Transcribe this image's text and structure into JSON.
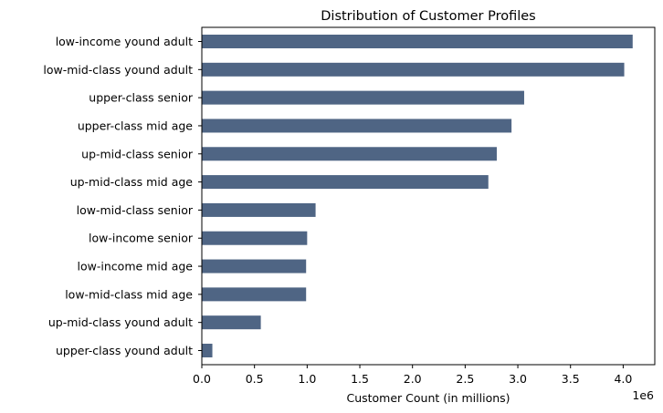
{
  "chart_data": {
    "type": "bar",
    "orientation": "horizontal",
    "title": "Distribution of Customer Profiles",
    "xlabel": "Customer Count (in millions)",
    "ylabel": "",
    "x_scale_label": "1e6",
    "xlim": [
      0,
      4300000
    ],
    "x_ticks": [
      0,
      500000,
      1000000,
      1500000,
      2000000,
      2500000,
      3000000,
      3500000,
      4000000
    ],
    "x_tick_labels": [
      "0.0",
      "0.5",
      "1.0",
      "1.5",
      "2.0",
      "2.5",
      "3.0",
      "3.5",
      "4.0"
    ],
    "categories": [
      "low-income yound adult",
      "low-mid-class yound adult",
      "upper-class senior",
      "upper-class mid age",
      "up-mid-class senior",
      "up-mid-class mid age",
      "low-mid-class senior",
      "low-income senior",
      "low-income mid age",
      "low-mid-class mid age",
      "up-mid-class yound adult",
      "upper-class yound adult"
    ],
    "values": [
      4090000,
      4010000,
      3060000,
      2940000,
      2800000,
      2720000,
      1080000,
      1000000,
      990000,
      990000,
      560000,
      100000
    ],
    "bar_color": "#4f6584",
    "grid": false,
    "legend": "none"
  }
}
